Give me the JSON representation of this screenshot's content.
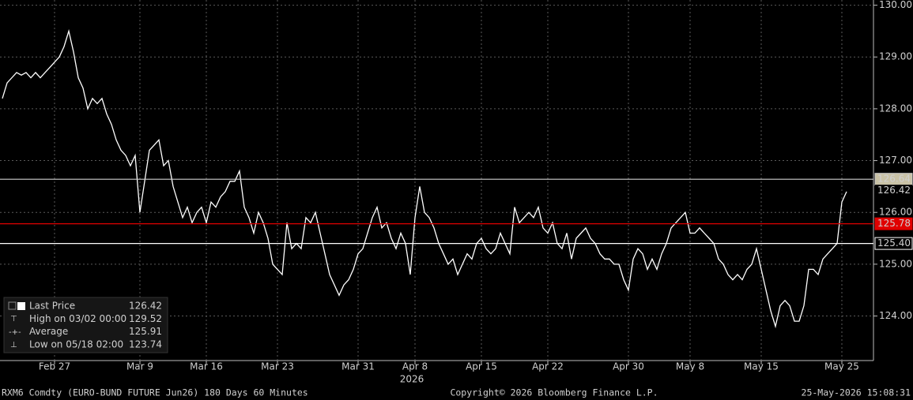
{
  "chart_data": {
    "type": "line",
    "categories": [
      null,
      null,
      null,
      null,
      null,
      null,
      null,
      null,
      null,
      null,
      null,
      "Feb 27",
      null,
      null,
      null,
      null,
      null,
      null,
      null,
      null,
      null,
      null,
      null,
      null,
      null,
      null,
      null,
      null,
      null,
      "Mar 9",
      null,
      null,
      null,
      null,
      null,
      null,
      null,
      null,
      null,
      null,
      null,
      null,
      null,
      "Mar 16",
      null,
      null,
      null,
      null,
      null,
      null,
      null,
      null,
      null,
      null,
      null,
      null,
      null,
      null,
      "Mar 23",
      null,
      null,
      null,
      null,
      null,
      null,
      null,
      null,
      null,
      null,
      null,
      null,
      null,
      null,
      null,
      null,
      "Mar 31",
      null,
      null,
      null,
      null,
      null,
      null,
      null,
      null,
      null,
      null,
      null,
      "Apr 8",
      null,
      null,
      null,
      null,
      null,
      null,
      null,
      null,
      null,
      null,
      null,
      null,
      null,
      "Apr 15",
      null,
      null,
      null,
      null,
      null,
      null,
      null,
      null,
      null,
      null,
      null,
      null,
      null,
      "Apr 22",
      null,
      null,
      null,
      null,
      null,
      null,
      null,
      null,
      null,
      null,
      null,
      null,
      null,
      null,
      null,
      null,
      "Apr 30",
      null,
      null,
      null,
      null,
      null,
      null,
      null,
      null,
      null,
      null,
      null,
      null,
      "May 8",
      null,
      null,
      null,
      null,
      null,
      null,
      null,
      null,
      null,
      null,
      null,
      null,
      null,
      null,
      "May 15",
      null,
      null,
      null,
      null,
      null,
      null,
      null,
      null,
      null,
      null,
      null,
      null,
      null,
      null,
      null,
      null,
      "May 25",
      null
    ],
    "series": [
      {
        "color": "#ffffff",
        "values": [
          128.2,
          128.5,
          128.6,
          128.7,
          128.65,
          128.7,
          128.6,
          128.7,
          128.6,
          128.7,
          128.8,
          128.9,
          129.0,
          129.2,
          129.5,
          129.1,
          128.6,
          128.4,
          128.0,
          128.2,
          128.1,
          128.2,
          127.9,
          127.7,
          127.4,
          127.2,
          127.1,
          126.9,
          127.1,
          126.0,
          126.6,
          127.2,
          127.3,
          127.4,
          126.9,
          127.0,
          126.5,
          126.2,
          125.9,
          126.1,
          125.8,
          126.0,
          126.1,
          125.8,
          126.2,
          126.1,
          126.3,
          126.4,
          126.6,
          126.6,
          126.8,
          126.1,
          125.9,
          125.6,
          126.0,
          125.8,
          125.5,
          125.0,
          124.9,
          124.8,
          125.8,
          125.3,
          125.4,
          125.3,
          125.9,
          125.8,
          126.0,
          125.6,
          125.2,
          124.8,
          124.6,
          124.4,
          124.6,
          124.7,
          124.9,
          125.2,
          125.3,
          125.6,
          125.9,
          126.1,
          125.7,
          125.8,
          125.5,
          125.3,
          125.6,
          125.4,
          124.8,
          125.9,
          126.5,
          126.0,
          125.9,
          125.7,
          125.4,
          125.2,
          125.0,
          125.1,
          124.8,
          125.0,
          125.2,
          125.1,
          125.4,
          125.5,
          125.3,
          125.2,
          125.3,
          125.6,
          125.4,
          125.2,
          126.1,
          125.8,
          125.9,
          126.0,
          125.9,
          126.1,
          125.7,
          125.6,
          125.8,
          125.4,
          125.3,
          125.6,
          125.1,
          125.5,
          125.6,
          125.7,
          125.5,
          125.4,
          125.2,
          125.1,
          125.1,
          125.0,
          125.0,
          124.7,
          124.5,
          125.1,
          125.3,
          125.2,
          124.9,
          125.1,
          124.9,
          125.2,
          125.4,
          125.7,
          125.8,
          125.9,
          126.0,
          125.6,
          125.6,
          125.7,
          125.6,
          125.5,
          125.4,
          125.1,
          125.0,
          124.8,
          124.7,
          124.8,
          124.7,
          124.9,
          125.0,
          125.3,
          124.9,
          124.5,
          124.1,
          123.8,
          124.2,
          124.3,
          124.2,
          123.9,
          123.9,
          124.2,
          124.9,
          124.9,
          124.8,
          125.1,
          125.2,
          125.3,
          125.4,
          126.2,
          126.4
        ]
      }
    ],
    "ylim": [
      123.14,
      130.1
    ],
    "yticks": [
      {
        "value": 124,
        "label": "124.00"
      },
      {
        "value": 125,
        "label": "125.00"
      },
      {
        "value": 126,
        "label": "126.00"
      },
      {
        "value": 127,
        "label": "127.00"
      },
      {
        "value": 128,
        "label": "128.00"
      },
      {
        "value": 129,
        "label": "129.00"
      },
      {
        "value": 130,
        "label": "130.00"
      }
    ],
    "grid": true,
    "year_label": "2026",
    "reference_lines": [
      {
        "value": 126.64,
        "label": "126.64",
        "color": "#cfcfcf",
        "tag_color": "#c9c2a6",
        "tag_text_color": "#000000"
      },
      {
        "value": 125.78,
        "label": "125.78",
        "color": "#e00000",
        "tag_color": "#e00000",
        "tag_text_color": "#ffffff"
      },
      {
        "value": 125.4,
        "label": "125.40",
        "color": "#ffffff",
        "tag_color": "#000000",
        "tag_text_color": "#ffffff"
      }
    ],
    "legend_stats": [
      {
        "label": "Last Price",
        "value": 126.42
      },
      {
        "label": "High on 03/02 00:00",
        "value": 129.52
      },
      {
        "label": "Average",
        "value": 125.91
      },
      {
        "label": "Low on 05/18 02:00",
        "value": 123.74
      }
    ],
    "footer": {
      "left": "RXM6 Comdty (EURO-BUND FUTURE  Jun26) 180 Days 60 Minutes",
      "center": "Copyright© 2026 Bloomberg Finance L.P.",
      "right": "25-May-2026 15:08:31"
    }
  }
}
